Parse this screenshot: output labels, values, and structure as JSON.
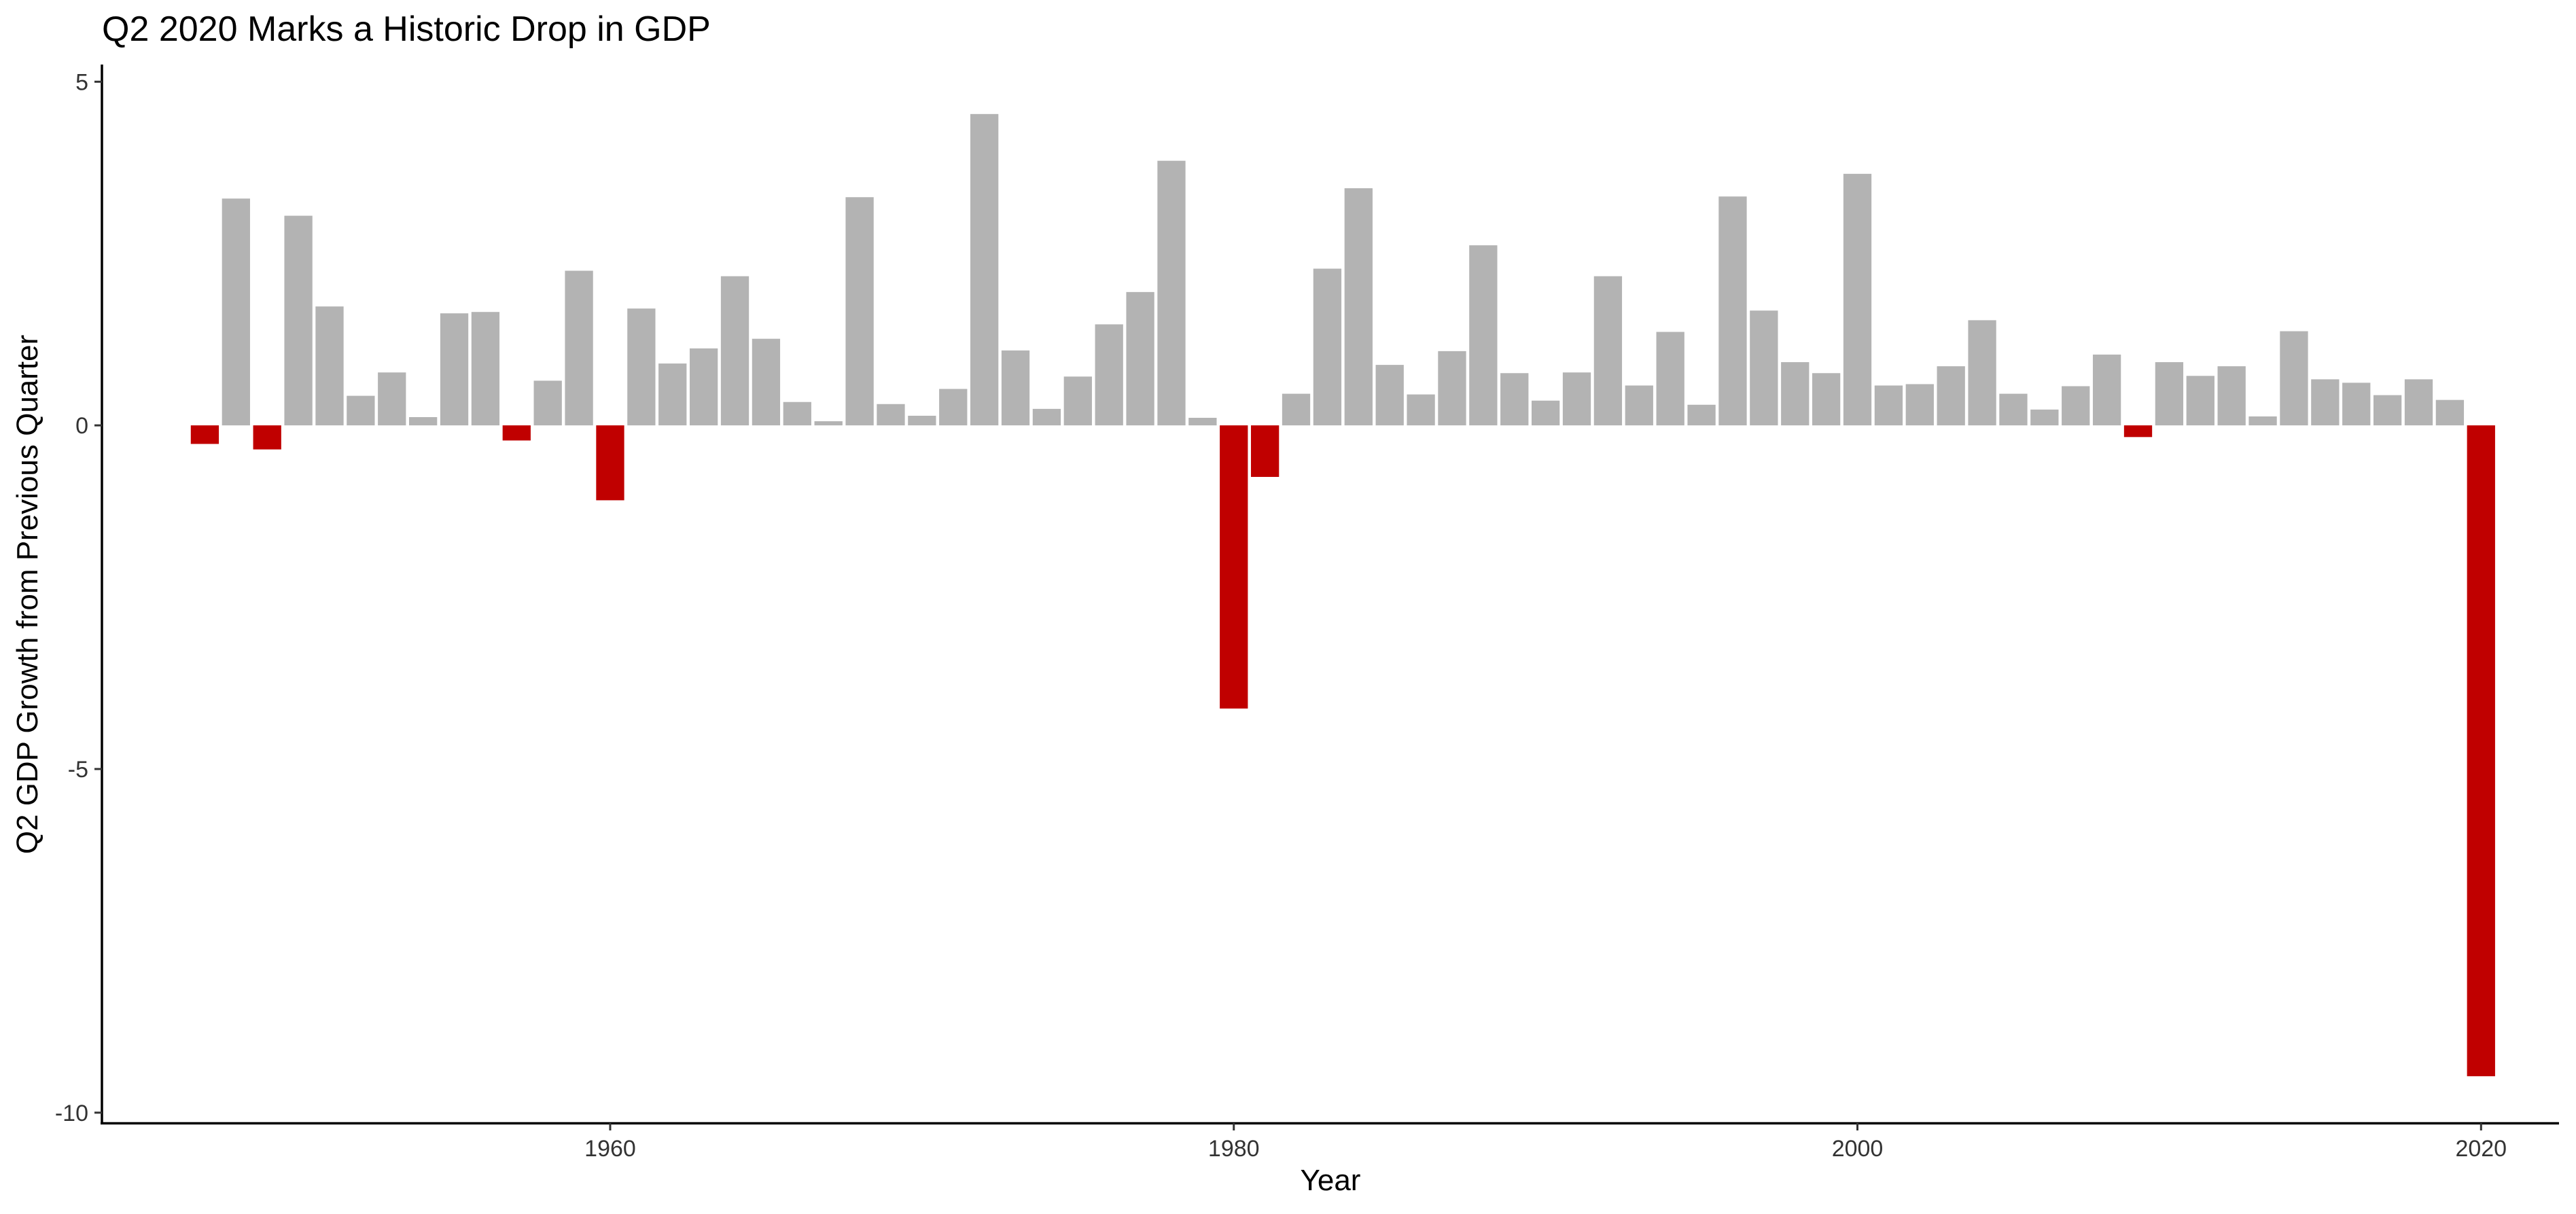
{
  "chart_data": {
    "type": "bar",
    "title": "Q2 2020 Marks a Historic Drop in GDP",
    "xlabel": "Year",
    "ylabel": "Q2 GDP Growth from Previous Quarter",
    "xlim": [
      1943.7,
      2022.5
    ],
    "ylim": [
      -10.15,
      5.25
    ],
    "x_ticks": [
      1960,
      1980,
      2000,
      2020
    ],
    "y_ticks": [
      5,
      0,
      -5,
      -10
    ],
    "y_tick_labels": [
      "5",
      "0",
      "-5",
      "-10"
    ],
    "grid": false,
    "legend": "none",
    "colors": {
      "positive": "#b3b3b3",
      "negative": "#c00000",
      "axis": "#000000",
      "tick_text": "#333333"
    },
    "years": [
      1947,
      1948,
      1949,
      1950,
      1951,
      1952,
      1953,
      1954,
      1955,
      1956,
      1957,
      1958,
      1959,
      1960,
      1961,
      1962,
      1963,
      1964,
      1965,
      1966,
      1967,
      1968,
      1969,
      1970,
      1971,
      1972,
      1973,
      1974,
      1975,
      1976,
      1977,
      1978,
      1979,
      1980,
      1981,
      1982,
      1983,
      1984,
      1985,
      1986,
      1987,
      1988,
      1989,
      1990,
      1991,
      1992,
      1993,
      1994,
      1995,
      1996,
      1997,
      1998,
      1999,
      2000,
      2001,
      2002,
      2003,
      2004,
      2005,
      2006,
      2007,
      2008,
      2009,
      2010,
      2011,
      2012,
      2013,
      2014,
      2015,
      2016,
      2017,
      2018,
      2019,
      2020
    ],
    "values": [
      -0.27,
      3.3,
      -0.35,
      3.05,
      1.73,
      0.43,
      0.77,
      0.12,
      1.63,
      1.65,
      -0.22,
      0.65,
      2.25,
      -1.09,
      1.7,
      0.9,
      1.12,
      2.17,
      1.26,
      0.34,
      0.06,
      3.32,
      0.31,
      0.14,
      0.53,
      4.53,
      1.09,
      0.24,
      0.71,
      1.47,
      1.94,
      3.85,
      0.11,
      -4.12,
      -0.75,
      0.46,
      2.28,
      3.45,
      0.88,
      0.45,
      1.08,
      2.62,
      0.76,
      0.36,
      0.77,
      2.17,
      0.58,
      1.36,
      0.3,
      3.33,
      1.67,
      0.92,
      0.76,
      3.66,
      0.58,
      0.6,
      0.86,
      1.53,
      0.46,
      0.23,
      0.57,
      1.03,
      -0.17,
      0.92,
      0.72,
      0.86,
      0.13,
      1.37,
      0.67,
      0.62,
      0.44,
      0.67,
      0.37,
      -9.47
    ]
  }
}
